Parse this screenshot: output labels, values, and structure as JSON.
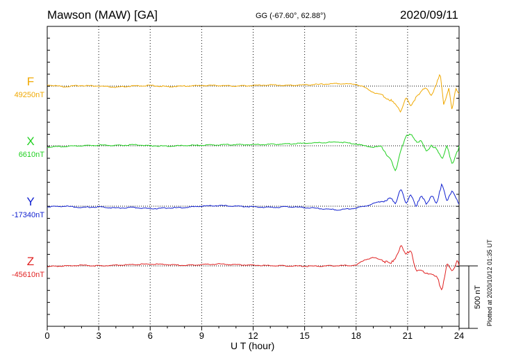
{
  "header": {
    "title": "Mawson (MAW)  [GA]",
    "coords": "GG (-67.60°,  62.88°)",
    "date": "2020/09/11"
  },
  "footer": {
    "plotted": "Plotted at 2020/10/12 01:35 UT"
  },
  "chart_data": {
    "type": "line",
    "xlabel": "U T (hour)",
    "x_ticks": [
      "0",
      "3",
      "6",
      "9",
      "12",
      "15",
      "18",
      "21",
      "24"
    ],
    "xlim": [
      0,
      24
    ],
    "scale_bar_label": "500 nT",
    "scale_bar_nT": 500,
    "grid": "vertical dotted lines every 3 hours; dotted baseline per channel",
    "series": [
      {
        "name": "F",
        "baseline_label": "49250nT",
        "color": "#f0a800",
        "x": [
          0,
          1,
          2,
          3,
          4,
          5,
          6,
          7,
          8,
          9,
          10,
          11,
          12,
          13,
          14,
          15,
          16,
          17,
          18,
          18.5,
          19,
          19.5,
          20,
          20.3,
          20.6,
          20.9,
          21.2,
          21.5,
          21.8,
          22.1,
          22.4,
          22.7,
          22.9,
          23.1,
          23.4,
          23.6,
          23.8,
          24
        ],
        "y": [
          49260,
          49245,
          49255,
          49250,
          49240,
          49250,
          49255,
          49245,
          49250,
          49255,
          49255,
          49250,
          49255,
          49260,
          49255,
          49260,
          49265,
          49270,
          49265,
          49240,
          49200,
          49180,
          49140,
          49100,
          49050,
          49160,
          49080,
          49170,
          49210,
          49230,
          49180,
          49280,
          49340,
          49100,
          49240,
          49050,
          49230,
          49180
        ]
      },
      {
        "name": "X",
        "baseline_label": "6610nT",
        "color": "#20d020",
        "x": [
          0,
          1,
          2,
          3,
          4,
          5,
          6,
          7,
          8,
          9,
          10,
          11,
          12,
          13,
          14,
          15,
          16,
          17,
          18,
          18.5,
          19,
          19.5,
          20,
          20.3,
          20.6,
          20.9,
          21.2,
          21.5,
          21.8,
          22.1,
          22.4,
          22.7,
          23,
          23.3,
          23.6,
          23.9,
          24
        ],
        "y": [
          6600,
          6605,
          6610,
          6615,
          6612,
          6618,
          6610,
          6608,
          6612,
          6615,
          6618,
          6620,
          6618,
          6622,
          6625,
          6630,
          6635,
          6640,
          6625,
          6610,
          6600,
          6605,
          6500,
          6400,
          6580,
          6680,
          6700,
          6650,
          6640,
          6560,
          6620,
          6580,
          6500,
          6620,
          6450,
          6560,
          6610
        ]
      },
      {
        "name": "Y",
        "baseline_label": "-17340nT",
        "color": "#1020d0",
        "x": [
          0,
          1,
          2,
          3,
          4,
          5,
          6,
          7,
          8,
          9,
          10,
          11,
          12,
          13,
          14,
          15,
          16,
          17,
          18,
          18.5,
          19,
          19.5,
          20,
          20.3,
          20.6,
          20.9,
          21.2,
          21.5,
          21.8,
          22.1,
          22.4,
          22.7,
          23,
          23.3,
          23.6,
          23.9,
          24
        ],
        "y": [
          -17345,
          -17340,
          -17350,
          -17345,
          -17355,
          -17350,
          -17360,
          -17355,
          -17350,
          -17340,
          -17335,
          -17340,
          -17345,
          -17350,
          -17345,
          -17350,
          -17360,
          -17370,
          -17355,
          -17340,
          -17320,
          -17300,
          -17280,
          -17320,
          -17190,
          -17330,
          -17240,
          -17340,
          -17260,
          -17320,
          -17250,
          -17330,
          -17150,
          -17300,
          -17220,
          -17290,
          -17320
        ]
      },
      {
        "name": "Z",
        "baseline_label": "-45610nT",
        "color": "#e02020",
        "x": [
          0,
          1,
          2,
          3,
          4,
          5,
          6,
          7,
          8,
          9,
          10,
          11,
          12,
          13,
          14,
          15,
          16,
          17,
          18,
          18.5,
          19,
          19.5,
          20,
          20.3,
          20.6,
          20.9,
          21.2,
          21.5,
          21.8,
          22.1,
          22.4,
          22.7,
          23,
          23.3,
          23.6,
          23.9,
          24
        ],
        "y": [
          -45615,
          -45610,
          -45605,
          -45610,
          -45605,
          -45600,
          -45595,
          -45600,
          -45605,
          -45600,
          -45595,
          -45600,
          -45605,
          -45608,
          -45610,
          -45612,
          -45612,
          -45608,
          -45605,
          -45560,
          -45545,
          -45560,
          -45600,
          -45540,
          -45450,
          -45520,
          -45480,
          -45660,
          -45650,
          -45660,
          -45680,
          -45700,
          -45800,
          -45590,
          -45660,
          -45560,
          -45600
        ]
      }
    ]
  }
}
